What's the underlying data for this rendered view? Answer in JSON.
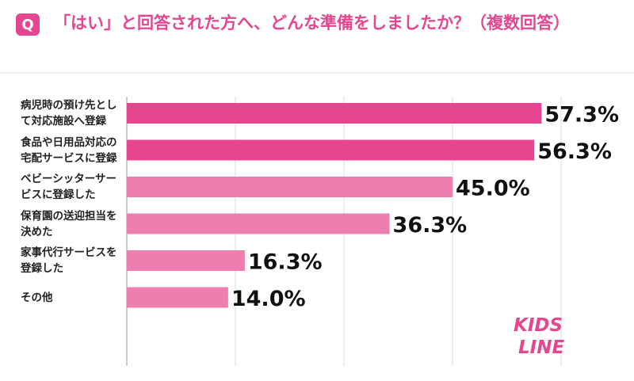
{
  "chart_data": {
    "type": "barh",
    "badge": "Q",
    "title": "「はい」と回答された方へ、どんな準備をしましたか？（複数回答）",
    "categories": [
      "病児時の預け先として対応施設へ登録",
      "食品や日用品対応の宅配サービスに登録",
      "ベビーシッターサービスに登録した",
      "保育園の送迎担当を決めた",
      "家事代行サービスを登録した",
      "その他"
    ],
    "values": [
      57.3,
      56.3,
      45.0,
      36.3,
      16.3,
      14.0
    ],
    "value_labels": [
      "57.3%",
      "56.3%",
      "45.0%",
      "36.3%",
      "16.3%",
      "14.0%"
    ],
    "colors": [
      "#e5468f",
      "#e5468f",
      "#ec7fae",
      "#ec7fae",
      "#ec7fae",
      "#ec7fae"
    ],
    "xlim": [
      0,
      60
    ],
    "xticks": [
      0,
      15,
      30,
      45,
      60
    ],
    "grid": true,
    "logo": [
      "KIDS",
      "LINE"
    ]
  }
}
